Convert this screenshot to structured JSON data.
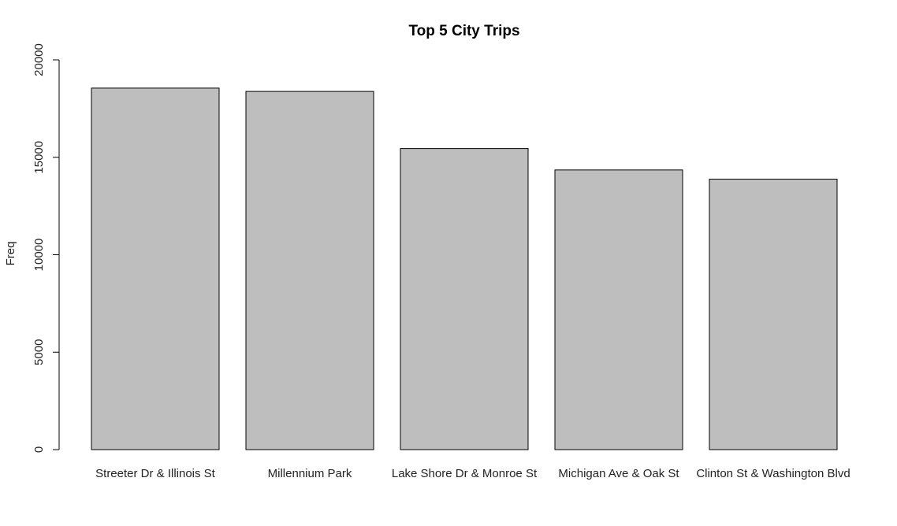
{
  "chart_data": {
    "type": "bar",
    "title": "Top 5 City Trips",
    "xlabel": "",
    "ylabel": "Freq",
    "categories": [
      "Streeter Dr & Illinois St",
      "Millennium Park",
      "Lake Shore Dr & Monroe St",
      "Michigan Ave & Oak St",
      "Clinton St & Washington Blvd"
    ],
    "values": [
      18550,
      18380,
      15450,
      14350,
      13880
    ],
    "ylim": [
      0,
      20000
    ],
    "yticks": [
      "0",
      "5000",
      "10000",
      "15000",
      "20000"
    ],
    "grid": false,
    "colors": {
      "bar_fill": "#bebebe",
      "bar_stroke": "#000000"
    }
  }
}
